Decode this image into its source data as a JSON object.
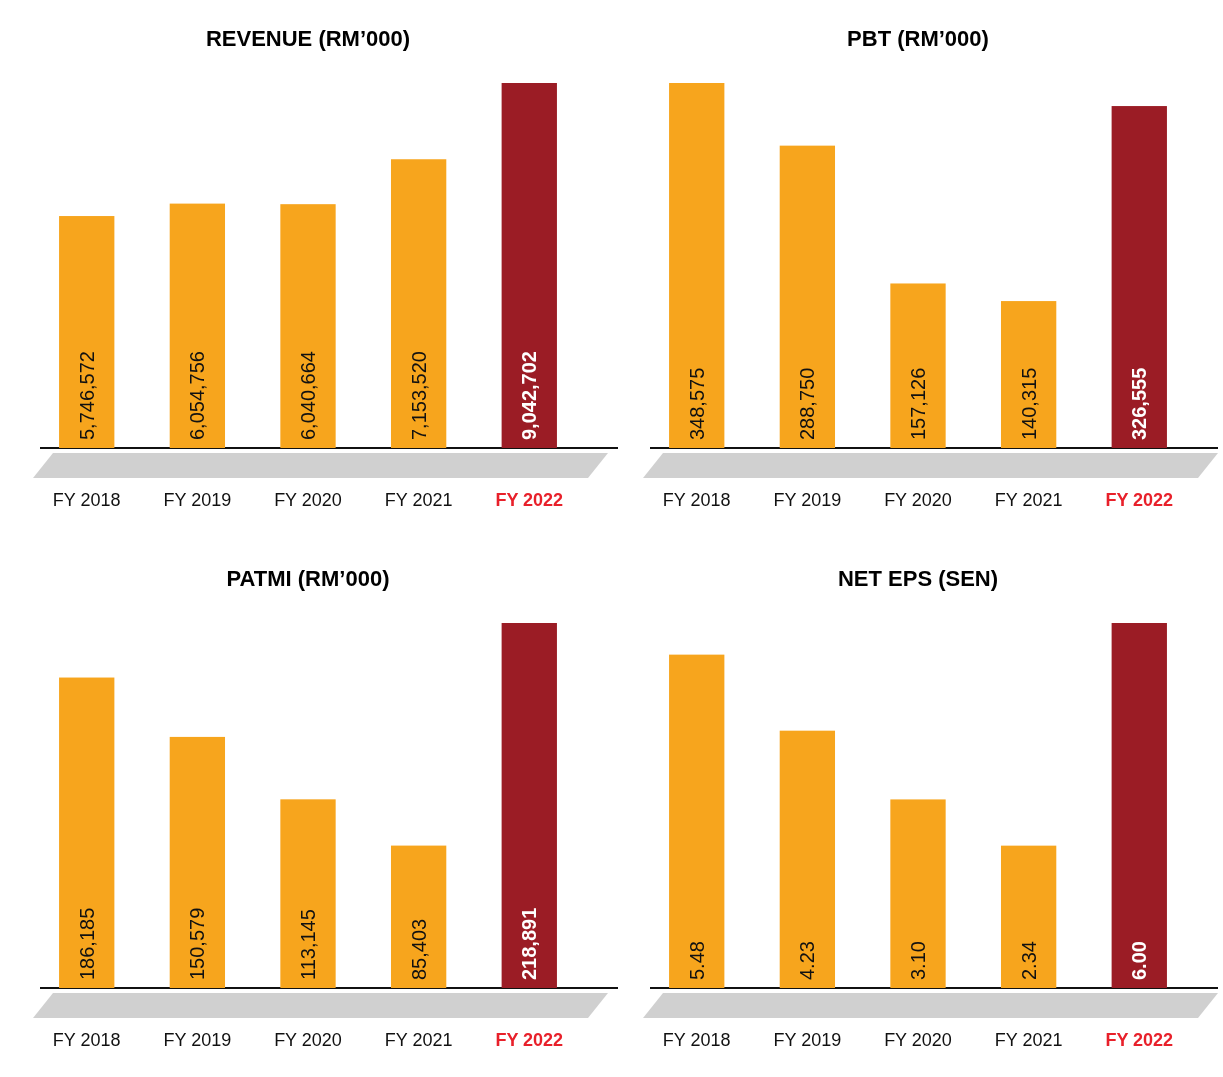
{
  "chart_data": [
    {
      "type": "bar",
      "title": "REVENUE (RM’000)",
      "categories": [
        "FY 2018",
        "FY 2019",
        "FY 2020",
        "FY 2021",
        "FY 2022"
      ],
      "values": [
        5746572,
        6054756,
        6040664,
        7153520,
        9042702
      ],
      "colors": [
        "#f7a51d",
        "#f7a51d",
        "#f7a51d",
        "#f7a51d",
        "#9b1c25"
      ],
      "data_labels": true,
      "value_labels": [
        "5,746,572",
        "6,054,756",
        "6,040,664",
        "7,153,520",
        "9,042,702"
      ]
    },
    {
      "type": "bar",
      "title": "PBT (RM’000)",
      "categories": [
        "FY 2018",
        "FY 2019",
        "FY 2020",
        "FY 2021",
        "FY 2022"
      ],
      "values": [
        348575,
        288750,
        157126,
        140315,
        326555
      ],
      "colors": [
        "#f7a51d",
        "#f7a51d",
        "#f7a51d",
        "#f7a51d",
        "#9b1c25"
      ],
      "data_labels": true,
      "value_labels": [
        "348,575",
        "288,750",
        "157,126",
        "140,315",
        "326,555"
      ]
    },
    {
      "type": "bar",
      "title": "PATMI (RM’000)",
      "categories": [
        "FY 2018",
        "FY 2019",
        "FY 2020",
        "FY 2021",
        "FY 2022"
      ],
      "values": [
        186185,
        150579,
        113145,
        85403,
        218891
      ],
      "colors": [
        "#f7a51d",
        "#f7a51d",
        "#f7a51d",
        "#f7a51d",
        "#9b1c25"
      ],
      "data_labels": true,
      "value_labels": [
        "186,185",
        "150,579",
        "113,145",
        "85,403",
        "218,891"
      ]
    },
    {
      "type": "bar",
      "title": "NET EPS (SEN)",
      "categories": [
        "FY 2018",
        "FY 2019",
        "FY 2020",
        "FY 2021",
        "FY 2022"
      ],
      "values": [
        5.48,
        4.23,
        3.1,
        2.34,
        6.0
      ],
      "colors": [
        "#f7a51d",
        "#f7a51d",
        "#f7a51d",
        "#f7a51d",
        "#9b1c25"
      ],
      "data_labels": true,
      "value_labels": [
        "5.48",
        "4.23",
        "3.10",
        "2.34",
        "6.00"
      ]
    }
  ]
}
